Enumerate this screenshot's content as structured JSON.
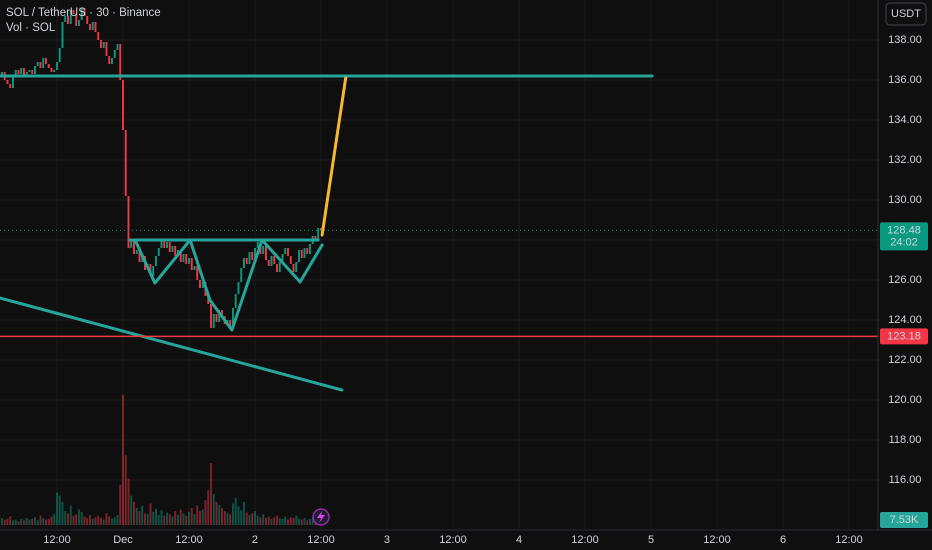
{
  "chart_data": {
    "type": "candlestick",
    "title": "SOL / TetherUS · 30 · Binance",
    "subtitle": "Vol · SOL",
    "currency": "USDT",
    "up_color": "#089981",
    "down_color": "#f23645",
    "grid": true,
    "xlim": [
      -22.36,
      137.27
    ],
    "ylim": [
      113.5,
      140
    ],
    "xticks": [
      {
        "value": -12,
        "label": "12:00"
      },
      {
        "value": 0,
        "label": "Dec"
      },
      {
        "value": 12,
        "label": "12:00"
      },
      {
        "value": 24,
        "label": "2"
      },
      {
        "value": 36,
        "label": "12:00"
      },
      {
        "value": 48,
        "label": "3"
      },
      {
        "value": 60,
        "label": "12:00"
      },
      {
        "value": 72,
        "label": "4"
      },
      {
        "value": 84,
        "label": "12:00"
      },
      {
        "value": 96,
        "label": "5"
      },
      {
        "value": 108,
        "label": "12:00"
      },
      {
        "value": 120,
        "label": "6"
      },
      {
        "value": 132,
        "label": "12:00"
      }
    ],
    "yticks": [
      {
        "value": 116,
        "label": "116.00"
      },
      {
        "value": 118,
        "label": "118.00"
      },
      {
        "value": 120,
        "label": "120.00"
      },
      {
        "value": 122,
        "label": "122.00"
      },
      {
        "value": 124,
        "label": "124.00"
      },
      {
        "value": 126,
        "label": "126.00"
      },
      {
        "value": 128,
        "label": "128.00"
      },
      {
        "value": 130,
        "label": "130.00"
      },
      {
        "value": 132,
        "label": "132.00"
      },
      {
        "value": 134,
        "label": "134.00"
      },
      {
        "value": 136,
        "label": "136.00"
      },
      {
        "value": 138,
        "label": "138.00"
      }
    ],
    "x": [
      -22,
      -21.5,
      -21,
      -20.5,
      -20,
      -19.5,
      -19,
      -18.5,
      -18,
      -17.5,
      -17,
      -16.5,
      -16,
      -15.5,
      -15,
      -14.5,
      -14,
      -13.5,
      -13,
      -12.5,
      -12,
      -11.5,
      -11,
      -10.5,
      -10,
      -9.5,
      -9,
      -8.5,
      -8,
      -7.5,
      -7,
      -6.5,
      -6,
      -5.5,
      -5,
      -4.5,
      -4,
      -3.5,
      -3,
      -2.5,
      -2,
      -1.5,
      -1,
      -0.5,
      0,
      0.5,
      1,
      1.5,
      2,
      2.5,
      3,
      3.5,
      4,
      4.5,
      5,
      5.5,
      6,
      6.5,
      7,
      7.5,
      8,
      8.5,
      9,
      9.5,
      10,
      10.5,
      11,
      11.5,
      12,
      12.5,
      13,
      13.5,
      14,
      14.5,
      15,
      15.5,
      16,
      16.5,
      17,
      17.5,
      18,
      18.5,
      19,
      19.5,
      20,
      20.5,
      21,
      21.5,
      22,
      22.5,
      23,
      23.5,
      24,
      24.5,
      25,
      25.5,
      26,
      26.5,
      27,
      27.5,
      28,
      28.5,
      29,
      29.5,
      30,
      30.5,
      31,
      31.5,
      32,
      32.5,
      33,
      33.5,
      34,
      34.5,
      35,
      35.5,
      36
    ],
    "open": [
      136.2,
      136.4,
      136.0,
      135.8,
      135.6,
      136.2,
      136.5,
      136.3,
      136.6,
      136.2,
      136.4,
      136.5,
      136.3,
      136.7,
      136.9,
      136.6,
      137.1,
      136.8,
      136.6,
      136.4,
      136.5,
      136.9,
      137.6,
      138.9,
      139.2,
      138.8,
      139.5,
      139.3,
      138.7,
      139.0,
      139.6,
      139.2,
      138.8,
      138.5,
      138.9,
      138.4,
      138.0,
      137.6,
      137.9,
      137.2,
      136.8,
      137.1,
      137.5,
      137.8,
      136.0,
      133.5,
      130.2,
      127.6,
      128.0,
      127.3,
      127.5,
      126.9,
      127.2,
      126.5,
      126.8,
      126.2,
      126.7,
      127.2,
      127.6,
      128.0,
      127.6,
      127.9,
      127.4,
      127.7,
      127.2,
      127.5,
      126.9,
      127.3,
      126.8,
      127.1,
      126.5,
      126.7,
      126.0,
      125.6,
      125.9,
      125.2,
      124.8,
      123.6,
      124.3,
      123.9,
      124.5,
      124.2,
      123.8,
      124.0,
      123.7,
      124.6,
      125.3,
      125.9,
      126.6,
      127.1,
      126.8,
      127.4,
      127.0,
      127.6,
      127.9,
      127.3,
      127.7,
      127.0,
      126.7,
      127.2,
      126.8,
      126.4,
      126.9,
      127.3,
      127.6,
      127.2,
      126.8,
      126.4,
      126.9,
      127.5,
      127.1,
      127.6,
      127.3,
      127.8,
      128.2,
      128.0,
      128.6
    ],
    "close": [
      136.4,
      136.0,
      135.8,
      135.6,
      136.2,
      136.5,
      136.3,
      136.6,
      136.2,
      136.4,
      136.5,
      136.3,
      136.7,
      136.9,
      136.6,
      137.1,
      136.8,
      136.6,
      136.4,
      136.5,
      136.9,
      137.6,
      138.9,
      139.2,
      138.8,
      139.5,
      139.3,
      138.7,
      139.0,
      139.6,
      139.2,
      138.8,
      138.5,
      138.9,
      138.4,
      138.0,
      137.6,
      137.9,
      137.2,
      136.8,
      137.1,
      137.5,
      137.8,
      136.0,
      133.5,
      130.2,
      127.6,
      128.0,
      127.3,
      127.5,
      126.9,
      127.2,
      126.5,
      126.8,
      126.2,
      126.7,
      127.2,
      127.6,
      128.0,
      127.6,
      127.9,
      127.4,
      127.7,
      127.2,
      127.5,
      126.9,
      127.3,
      126.8,
      127.1,
      126.5,
      126.7,
      126.0,
      125.6,
      125.9,
      125.2,
      124.8,
      123.6,
      124.3,
      123.9,
      124.5,
      124.2,
      123.8,
      124.0,
      123.7,
      124.6,
      125.3,
      125.9,
      126.6,
      127.1,
      126.8,
      127.4,
      127.0,
      127.6,
      127.9,
      127.3,
      127.7,
      127.0,
      126.7,
      127.2,
      126.8,
      126.4,
      126.9,
      127.3,
      127.6,
      127.2,
      126.8,
      126.4,
      126.9,
      127.5,
      127.1,
      127.6,
      127.3,
      127.8,
      128.2,
      128.0,
      128.6,
      128.48
    ],
    "volume": [
      9000,
      7000,
      8000,
      11000,
      6000,
      7000,
      5000,
      8000,
      6000,
      9000,
      7000,
      8000,
      10000,
      6000,
      12000,
      9000,
      7000,
      8000,
      11000,
      14000,
      42000,
      38000,
      30000,
      18000,
      15000,
      25000,
      12000,
      14000,
      20000,
      17000,
      11000,
      9000,
      13000,
      8000,
      10000,
      12000,
      9000,
      7000,
      15000,
      11000,
      8000,
      10000,
      13000,
      52000,
      168000,
      90000,
      60000,
      38000,
      30000,
      22000,
      18000,
      25000,
      15000,
      14000,
      28000,
      17000,
      21000,
      13000,
      19000,
      12000,
      16000,
      14000,
      11000,
      18000,
      13000,
      20000,
      15000,
      12000,
      17000,
      22000,
      14000,
      25000,
      18000,
      20000,
      32000,
      45000,
      80000,
      40000,
      30000,
      26000,
      22000,
      18000,
      16000,
      14000,
      28000,
      35000,
      24000,
      19000,
      30000,
      16000,
      13000,
      15000,
      18000,
      12000,
      10000,
      14000,
      9000,
      11000,
      8000,
      10000,
      12000,
      9000,
      8000,
      11000,
      7000,
      10000,
      9000,
      12000,
      8000,
      7000,
      9000,
      6000,
      8000,
      10000,
      7000,
      9000,
      7530
    ],
    "last_volume_label": "7.53K",
    "last_price": 128.48,
    "countdown": "24:02",
    "support_price": 123.18,
    "drawings": [
      {
        "color": "#26a69a",
        "points": [
          [
            -22.4,
            136.2
          ],
          [
            96.2,
            136.2
          ]
        ]
      },
      {
        "color": "#26a69a",
        "points": [
          [
            -22.4,
            125.1
          ],
          [
            39.8,
            120.5
          ]
        ]
      },
      {
        "color": "#26a69a",
        "points": [
          [
            1.3,
            128.0
          ],
          [
            35.5,
            128.0
          ]
        ]
      },
      {
        "color": "#26a69a",
        "points": [
          [
            2.2,
            128.0
          ],
          [
            5.8,
            125.85
          ],
          [
            12.2,
            128.0
          ],
          [
            15.8,
            125.0
          ],
          [
            19.8,
            123.5
          ],
          [
            25.3,
            128.0
          ],
          [
            32.2,
            125.9
          ],
          [
            36.2,
            127.75
          ]
        ]
      },
      {
        "color": "#f7b731",
        "points": [
          [
            36.2,
            128.25
          ],
          [
            40.5,
            136.1
          ]
        ]
      }
    ]
  }
}
